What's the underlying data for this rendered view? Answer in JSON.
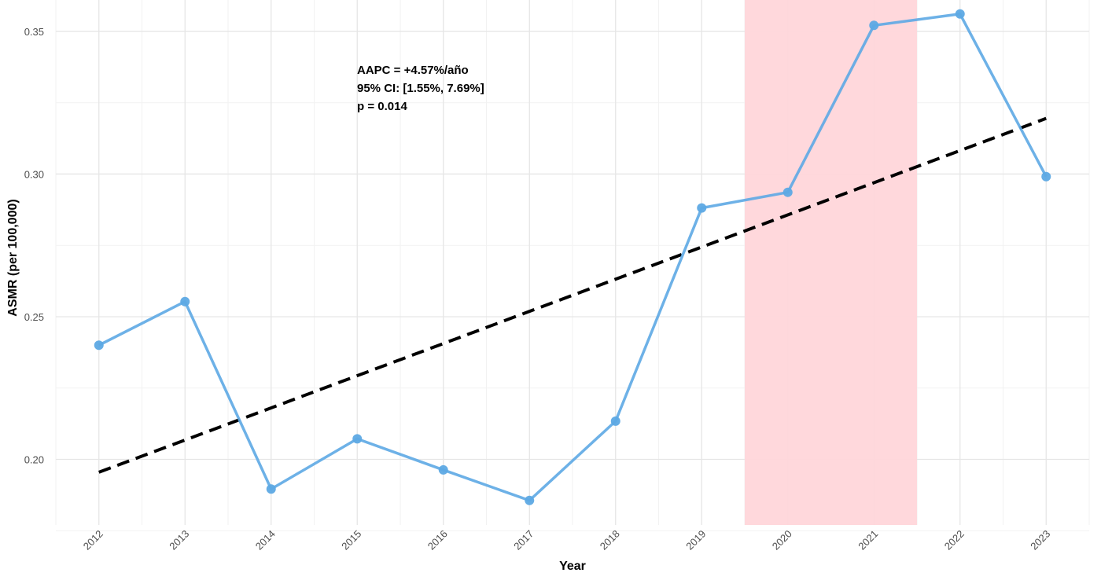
{
  "chart_data": {
    "type": "line",
    "xlabel": "Year",
    "ylabel": "ASMR (per 100,000)",
    "x": [
      2012,
      2013,
      2014,
      2015,
      2016,
      2017,
      2018,
      2019,
      2020,
      2021,
      2022,
      2023
    ],
    "series": [
      {
        "values": [
          0.24,
          0.2553,
          0.1896,
          0.2072,
          0.1963,
          0.1856,
          0.2134,
          0.2881,
          0.2936,
          0.3521,
          0.3561,
          0.2991
        ],
        "color": "#5DA9E4"
      }
    ],
    "trend": {
      "style": "dashed",
      "color": "#000000",
      "x": [
        2012,
        2023
      ],
      "values": [
        0.1955,
        0.3195
      ]
    },
    "highlight": {
      "from": 2019.5,
      "to": 2021.5,
      "color": "#FFD6DA"
    },
    "annotations": [
      "AAPC = +4.57%/año",
      "95% CI: [1.55%, 7.69%]",
      "p = 0.014"
    ],
    "y_ticks": [
      "0.20",
      "0.25",
      "0.30",
      "0.35"
    ],
    "x_ticks": [
      "2012",
      "2013",
      "2014",
      "2015",
      "2016",
      "2017",
      "2018",
      "2019",
      "2020",
      "2021",
      "2022",
      "2023"
    ],
    "xlim": [
      2011.5,
      2023.5
    ],
    "ylim": [
      0.177,
      0.361
    ],
    "grid": true,
    "legend": "none"
  }
}
